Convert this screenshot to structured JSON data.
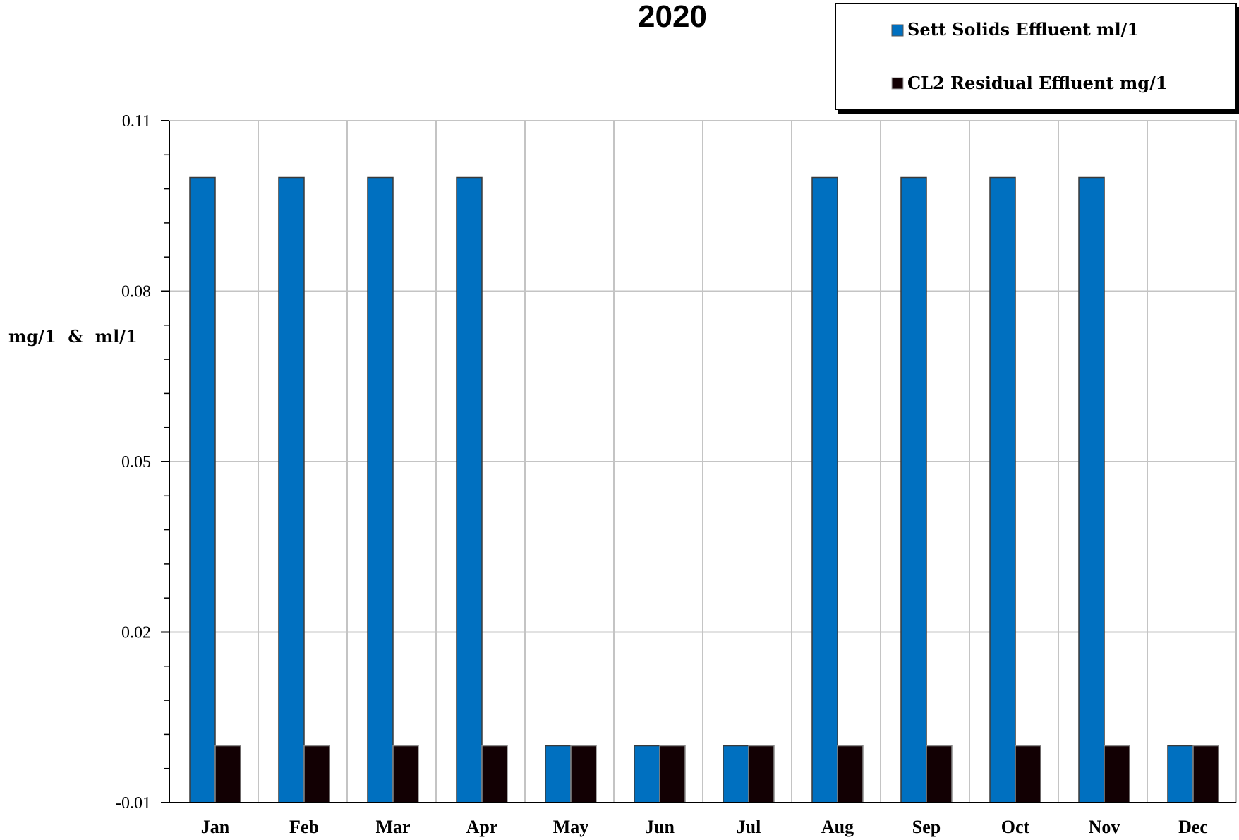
{
  "chart_data": {
    "type": "bar",
    "title": "2020",
    "ylabel": "mg/1  &  ml/1",
    "xlabel": "",
    "categories": [
      "Jan",
      "Feb",
      "Mar",
      "Apr",
      "May",
      "Jun",
      "Jul",
      "Aug",
      "Sep",
      "Oct",
      "Nov",
      "Dec"
    ],
    "series": [
      {
        "name": "Sett Solids Effluent ml/1",
        "color": "#0070C0",
        "values": [
          0.1,
          0.1,
          0.1,
          0.1,
          0,
          0,
          0,
          0.1,
          0.1,
          0.1,
          0.1,
          0
        ]
      },
      {
        "name": "CL2 Residual Effluent mg/1",
        "color": "#120003",
        "values": [
          0,
          0,
          0,
          0,
          0,
          0,
          0,
          0,
          0,
          0,
          0,
          0
        ]
      }
    ],
    "ylim": [
      -0.01,
      0.11
    ],
    "yticks": [
      "0.11",
      "0.08",
      "0.05",
      "0.02",
      "-0.01"
    ],
    "ytick_values": [
      0.11,
      0.08,
      0.05,
      0.02,
      -0.01
    ],
    "minor_tick_step": 0.006,
    "grid": true,
    "legend_position": "top-right"
  }
}
